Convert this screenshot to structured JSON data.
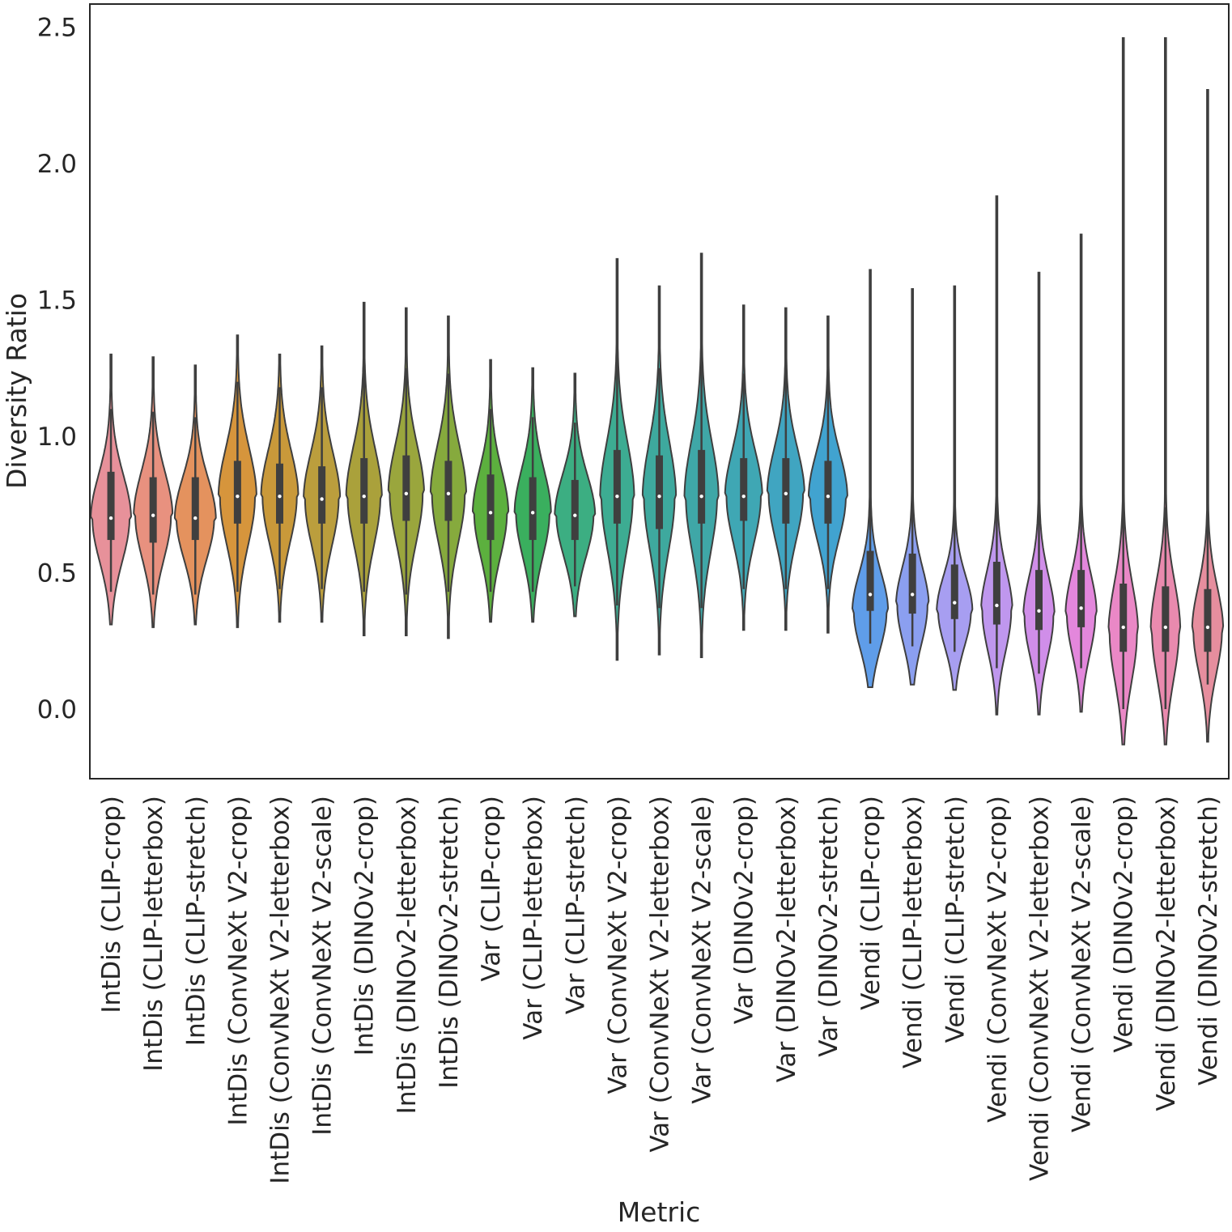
{
  "chart_data": {
    "type": "violin",
    "xlabel": "Metric",
    "ylabel": "Diversity Ratio",
    "ylim": [
      -0.26,
      2.6
    ],
    "yticks": [
      "0.0",
      "0.5",
      "1.0",
      "1.5",
      "2.0",
      "2.5"
    ],
    "grid": false,
    "legend": "none",
    "categories": [
      {
        "label": "IntDis (CLIP-crop)",
        "color": "#e7919a",
        "min": 0.31,
        "max": 1.3,
        "q1": 0.62,
        "median": 0.7,
        "q3": 0.87,
        "wlo": 0.43,
        "whi": 1.1,
        "mode": 0.7,
        "spread": 0.16,
        "width": 0.52
      },
      {
        "label": "IntDis (CLIP-letterbox)",
        "color": "#e8917f",
        "min": 0.3,
        "max": 1.29,
        "q1": 0.61,
        "median": 0.71,
        "q3": 0.85,
        "wlo": 0.42,
        "whi": 1.09,
        "mode": 0.71,
        "spread": 0.16,
        "width": 0.5
      },
      {
        "label": "IntDis (CLIP-stretch)",
        "color": "#e4925e",
        "min": 0.31,
        "max": 1.26,
        "q1": 0.62,
        "median": 0.7,
        "q3": 0.85,
        "wlo": 0.42,
        "whi": 1.07,
        "mode": 0.7,
        "spread": 0.15,
        "width": 0.53
      },
      {
        "label": "IntDis (ConvNeXt V2-crop)",
        "color": "#d6953c",
        "min": 0.3,
        "max": 1.37,
        "q1": 0.68,
        "median": 0.78,
        "q3": 0.91,
        "wlo": 0.43,
        "whi": 1.2,
        "mode": 0.78,
        "spread": 0.18,
        "width": 0.49
      },
      {
        "label": "IntDis (ConvNeXt V2-letterbox)",
        "color": "#c9993a",
        "min": 0.32,
        "max": 1.3,
        "q1": 0.68,
        "median": 0.78,
        "q3": 0.9,
        "wlo": 0.44,
        "whi": 1.18,
        "mode": 0.78,
        "spread": 0.17,
        "width": 0.48
      },
      {
        "label": "IntDis (ConvNeXt V2-scale)",
        "color": "#bb9e3d",
        "min": 0.32,
        "max": 1.33,
        "q1": 0.68,
        "median": 0.77,
        "q3": 0.89,
        "wlo": 0.44,
        "whi": 1.18,
        "mode": 0.77,
        "spread": 0.17,
        "width": 0.47
      },
      {
        "label": "IntDis (DINOv2-crop)",
        "color": "#aaa13b",
        "min": 0.27,
        "max": 1.49,
        "q1": 0.68,
        "median": 0.78,
        "q3": 0.92,
        "wlo": 0.43,
        "whi": 1.26,
        "mode": 0.78,
        "spread": 0.18,
        "width": 0.46
      },
      {
        "label": "IntDis (DINOv2-letterbox)",
        "color": "#9aa63d",
        "min": 0.27,
        "max": 1.47,
        "q1": 0.69,
        "median": 0.79,
        "q3": 0.93,
        "wlo": 0.42,
        "whi": 1.25,
        "mode": 0.79,
        "spread": 0.18,
        "width": 0.46
      },
      {
        "label": "IntDis (DINOv2-stretch)",
        "color": "#86aa3d",
        "min": 0.26,
        "max": 1.44,
        "q1": 0.69,
        "median": 0.79,
        "q3": 0.91,
        "wlo": 0.43,
        "whi": 1.23,
        "mode": 0.79,
        "spread": 0.18,
        "width": 0.46
      },
      {
        "label": "Var (CLIP-crop)",
        "color": "#5cb03e",
        "min": 0.32,
        "max": 1.28,
        "q1": 0.62,
        "median": 0.72,
        "q3": 0.86,
        "wlo": 0.43,
        "whi": 1.1,
        "mode": 0.72,
        "spread": 0.16,
        "width": 0.46
      },
      {
        "label": "Var (CLIP-letterbox)",
        "color": "#3aaf5e",
        "min": 0.32,
        "max": 1.25,
        "q1": 0.62,
        "median": 0.72,
        "q3": 0.85,
        "wlo": 0.43,
        "whi": 1.07,
        "mode": 0.72,
        "spread": 0.16,
        "width": 0.47
      },
      {
        "label": "Var (CLIP-stretch)",
        "color": "#3cae82",
        "min": 0.34,
        "max": 1.23,
        "q1": 0.62,
        "median": 0.71,
        "q3": 0.84,
        "wlo": 0.45,
        "whi": 1.05,
        "mode": 0.71,
        "spread": 0.15,
        "width": 0.52
      },
      {
        "label": "Var (ConvNeXt V2-crop)",
        "color": "#3dac92",
        "min": 0.18,
        "max": 1.65,
        "q1": 0.68,
        "median": 0.78,
        "q3": 0.95,
        "wlo": 0.38,
        "whi": 1.33,
        "mode": 0.78,
        "spread": 0.2,
        "width": 0.44
      },
      {
        "label": "Var (ConvNeXt V2-letterbox)",
        "color": "#3ea99e",
        "min": 0.2,
        "max": 1.55,
        "q1": 0.66,
        "median": 0.78,
        "q3": 0.93,
        "wlo": 0.37,
        "whi": 1.25,
        "mode": 0.78,
        "spread": 0.2,
        "width": 0.43
      },
      {
        "label": "Var (ConvNeXt V2-scale)",
        "color": "#3fa7a7",
        "min": 0.19,
        "max": 1.67,
        "q1": 0.68,
        "median": 0.78,
        "q3": 0.95,
        "wlo": 0.37,
        "whi": 1.33,
        "mode": 0.78,
        "spread": 0.2,
        "width": 0.44
      },
      {
        "label": "Var (DINOv2-crop)",
        "color": "#3fa7b4",
        "min": 0.29,
        "max": 1.48,
        "q1": 0.69,
        "median": 0.78,
        "q3": 0.92,
        "wlo": 0.44,
        "whi": 1.23,
        "mode": 0.78,
        "spread": 0.17,
        "width": 0.48
      },
      {
        "label": "Var (DINOv2-letterbox)",
        "color": "#40a5c1",
        "min": 0.29,
        "max": 1.47,
        "q1": 0.68,
        "median": 0.79,
        "q3": 0.92,
        "wlo": 0.44,
        "whi": 1.26,
        "mode": 0.79,
        "spread": 0.17,
        "width": 0.48
      },
      {
        "label": "Var (DINOv2-stretch)",
        "color": "#41a3d0",
        "min": 0.28,
        "max": 1.44,
        "q1": 0.68,
        "median": 0.78,
        "q3": 0.91,
        "wlo": 0.44,
        "whi": 1.25,
        "mode": 0.78,
        "spread": 0.16,
        "width": 0.5
      },
      {
        "label": "Vendi (CLIP-crop)",
        "color": "#5f9de9",
        "min": 0.08,
        "max": 1.61,
        "q1": 0.36,
        "median": 0.42,
        "q3": 0.58,
        "wlo": 0.24,
        "whi": 0.9,
        "mode": 0.36,
        "spread": 0.14,
        "width": 0.46
      },
      {
        "label": "Vendi (CLIP-letterbox)",
        "color": "#8b9ff0",
        "min": 0.09,
        "max": 1.54,
        "q1": 0.35,
        "median": 0.42,
        "q3": 0.57,
        "wlo": 0.23,
        "whi": 0.88,
        "mode": 0.38,
        "spread": 0.14,
        "width": 0.42
      },
      {
        "label": "Vendi (CLIP-stretch)",
        "color": "#a79ef1",
        "min": 0.07,
        "max": 1.55,
        "q1": 0.33,
        "median": 0.39,
        "q3": 0.53,
        "wlo": 0.21,
        "whi": 0.82,
        "mode": 0.36,
        "spread": 0.13,
        "width": 0.46
      },
      {
        "label": "Vendi (ConvNeXt V2-crop)",
        "color": "#bf97ee",
        "min": -0.02,
        "max": 1.88,
        "q1": 0.31,
        "median": 0.38,
        "q3": 0.54,
        "wlo": 0.15,
        "whi": 0.85,
        "mode": 0.36,
        "spread": 0.15,
        "width": 0.4
      },
      {
        "label": "Vendi (ConvNeXt V2-letterbox)",
        "color": "#d08ee9",
        "min": -0.02,
        "max": 1.6,
        "q1": 0.29,
        "median": 0.36,
        "q3": 0.51,
        "wlo": 0.13,
        "whi": 0.8,
        "mode": 0.34,
        "spread": 0.15,
        "width": 0.4
      },
      {
        "label": "Vendi (ConvNeXt V2-scale)",
        "color": "#e387dc",
        "min": -0.01,
        "max": 1.74,
        "q1": 0.3,
        "median": 0.37,
        "q3": 0.51,
        "wlo": 0.15,
        "whi": 0.81,
        "mode": 0.35,
        "spread": 0.15,
        "width": 0.4
      },
      {
        "label": "Vendi (DINOv2-crop)",
        "color": "#ea88c6",
        "min": -0.13,
        "max": 2.46,
        "q1": 0.21,
        "median": 0.3,
        "q3": 0.46,
        "wlo": 0.0,
        "whi": 0.8,
        "mode": 0.28,
        "spread": 0.18,
        "width": 0.38
      },
      {
        "label": "Vendi (DINOv2-letterbox)",
        "color": "#e98aae",
        "min": -0.13,
        "max": 2.46,
        "q1": 0.21,
        "median": 0.3,
        "q3": 0.45,
        "wlo": 0.0,
        "whi": 0.74,
        "mode": 0.29,
        "spread": 0.18,
        "width": 0.38
      },
      {
        "label": "Vendi (DINOv2-stretch)",
        "color": "#e68e9e",
        "min": -0.12,
        "max": 2.27,
        "q1": 0.21,
        "median": 0.3,
        "q3": 0.44,
        "wlo": 0.09,
        "whi": 0.75,
        "mode": 0.29,
        "spread": 0.16,
        "width": 0.4
      }
    ]
  }
}
